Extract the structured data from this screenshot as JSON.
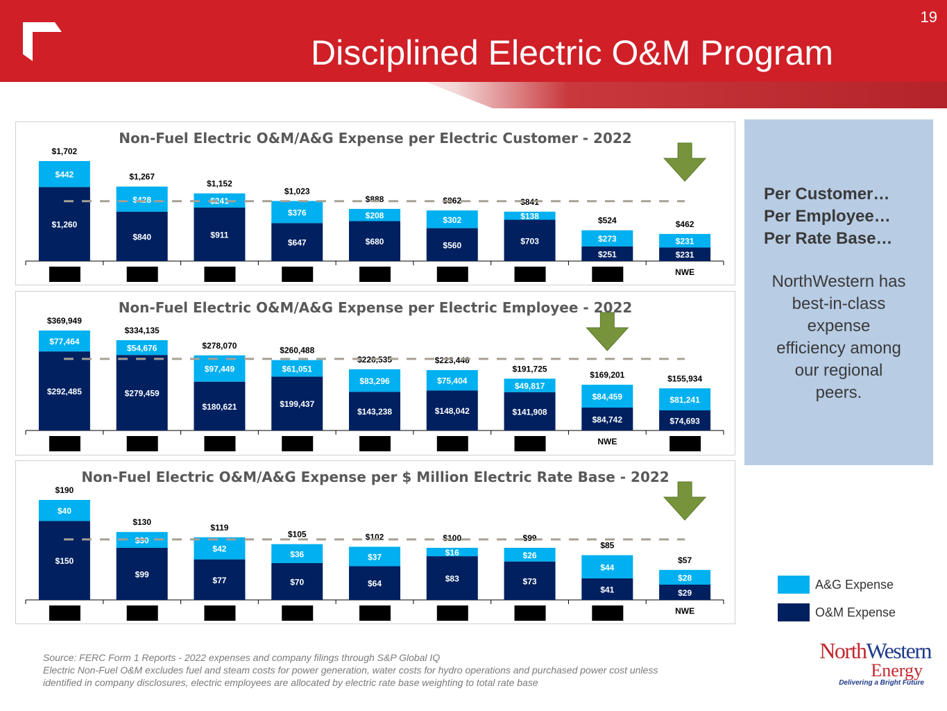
{
  "header": {
    "title": "Disciplined Electric O&M Program",
    "page_number": "19"
  },
  "colors": {
    "ag": "#00b0f0",
    "om": "#002060",
    "header_red": "#d01f27",
    "arrow": "#77933c",
    "dash": "#a6a095"
  },
  "side_panel": {
    "bold_lines": [
      "Per Customer…",
      "Per Employee…",
      "Per Rate Base…"
    ],
    "body_lines": [
      "NorthWestern has",
      "best-in-class",
      "expense",
      "efficiency among",
      "our regional",
      "peers."
    ]
  },
  "legend": [
    {
      "label": "A&G Expense",
      "color": "#00b0f0"
    },
    {
      "label": "O&M Expense",
      "color": "#002060"
    }
  ],
  "logo": {
    "name_part1": "North",
    "name_part2": "Western",
    "sub": "Energy",
    "tagline": "Delivering a Bright Future"
  },
  "footer": {
    "lines": [
      "Source:  FERC Form 1 Reports - 2022 expenses and company filings through S&P Global IQ",
      "Electric Non-Fuel O&M excludes fuel and steam costs for power generation, water costs for hydro operations and purchased power cost unless",
      "identified in company disclosures, electric employees are allocated by electric rate base weighting to total rate base"
    ]
  },
  "chart_data": [
    {
      "type": "bar",
      "stacked": true,
      "title": "Non-Fuel Electric O&M/A&G Expense per Electric Customer - 2022",
      "categories": [
        "[redacted]",
        "[redacted]",
        "[redacted]",
        "[redacted]",
        "[redacted]",
        "[redacted]",
        "[redacted]",
        "[redacted]",
        "NWE"
      ],
      "series": [
        {
          "name": "O&M Expense",
          "values": [
            1260,
            840,
            911,
            647,
            680,
            560,
            703,
            251,
            231
          ],
          "labels": [
            "$1,260",
            "$840",
            "$911",
            "$647",
            "$680",
            "$560",
            "$703",
            "$251",
            "$231"
          ]
        },
        {
          "name": "A&G Expense",
          "values": [
            442,
            428,
            241,
            376,
            208,
            302,
            138,
            273,
            231
          ],
          "labels": [
            "$442",
            "$428",
            "$241",
            "$376",
            "$208",
            "$302",
            "$138",
            "$273",
            "$231"
          ]
        }
      ],
      "totals": [
        "$1,702",
        "$1,267",
        "$1,152",
        "$1,023",
        "$888",
        "$862",
        "$841",
        "$524",
        "$462"
      ],
      "reference_line": 1020,
      "arrow_category": "NWE",
      "ylim": [
        0,
        1800
      ]
    },
    {
      "type": "bar",
      "stacked": true,
      "title": "Non-Fuel Electric O&M/A&G Expense per Electric Employee - 2022",
      "categories": [
        "[redacted]",
        "[redacted]",
        "[redacted]",
        "[redacted]",
        "[redacted]",
        "[redacted]",
        "[redacted]",
        "NWE",
        "[redacted]"
      ],
      "series": [
        {
          "name": "O&M Expense",
          "values": [
            292485,
            279459,
            180621,
            199437,
            143238,
            148042,
            141908,
            84742,
            74693
          ],
          "labels": [
            "$292,485",
            "$279,459",
            "$180,621",
            "$199,437",
            "$143,238",
            "$148,042",
            "$141,908",
            "$84,742",
            "$74,693"
          ]
        },
        {
          "name": "A&G Expense",
          "values": [
            77464,
            54676,
            97449,
            61051,
            83296,
            75404,
            49817,
            84459,
            81241
          ],
          "labels": [
            "$77,464",
            "$54,676",
            "$97,449",
            "$61,051",
            "$83,296",
            "$75,404",
            "$49,817",
            "$84,459",
            "$81,241"
          ]
        }
      ],
      "totals": [
        "$369,949",
        "$334,135",
        "$278,070",
        "$260,488",
        "$226,535",
        "$223,446",
        "$191,725",
        "$169,201",
        "$155,934"
      ],
      "reference_line": 265000,
      "arrow_category": "NWE",
      "ylim": [
        0,
        400000
      ]
    },
    {
      "type": "bar",
      "stacked": true,
      "title": "Non-Fuel Electric O&M/A&G Expense per $ Million Electric Rate Base - 2022",
      "categories": [
        "[redacted]",
        "[redacted]",
        "[redacted]",
        "[redacted]",
        "[redacted]",
        "[redacted]",
        "[redacted]",
        "[redacted]",
        "NWE"
      ],
      "series": [
        {
          "name": "O&M Expense",
          "values": [
            150,
            99,
            77,
            70,
            64,
            83,
            73,
            41,
            29
          ],
          "labels": [
            "$150",
            "$99",
            "$77",
            "$70",
            "$64",
            "$83",
            "$73",
            "$41",
            "$29"
          ]
        },
        {
          "name": "A&G Expense",
          "values": [
            40,
            30,
            42,
            36,
            37,
            16,
            26,
            44,
            28
          ],
          "labels": [
            "$40",
            "$30",
            "$42",
            "$36",
            "$37",
            "$16",
            "$26",
            "$44",
            "$28"
          ]
        }
      ],
      "totals": [
        "$190",
        "$130",
        "$119",
        "$105",
        "$102",
        "$100",
        "$99",
        "$85",
        "$57"
      ],
      "reference_line": 115,
      "arrow_category": "NWE",
      "ylim": [
        0,
        200
      ]
    }
  ]
}
